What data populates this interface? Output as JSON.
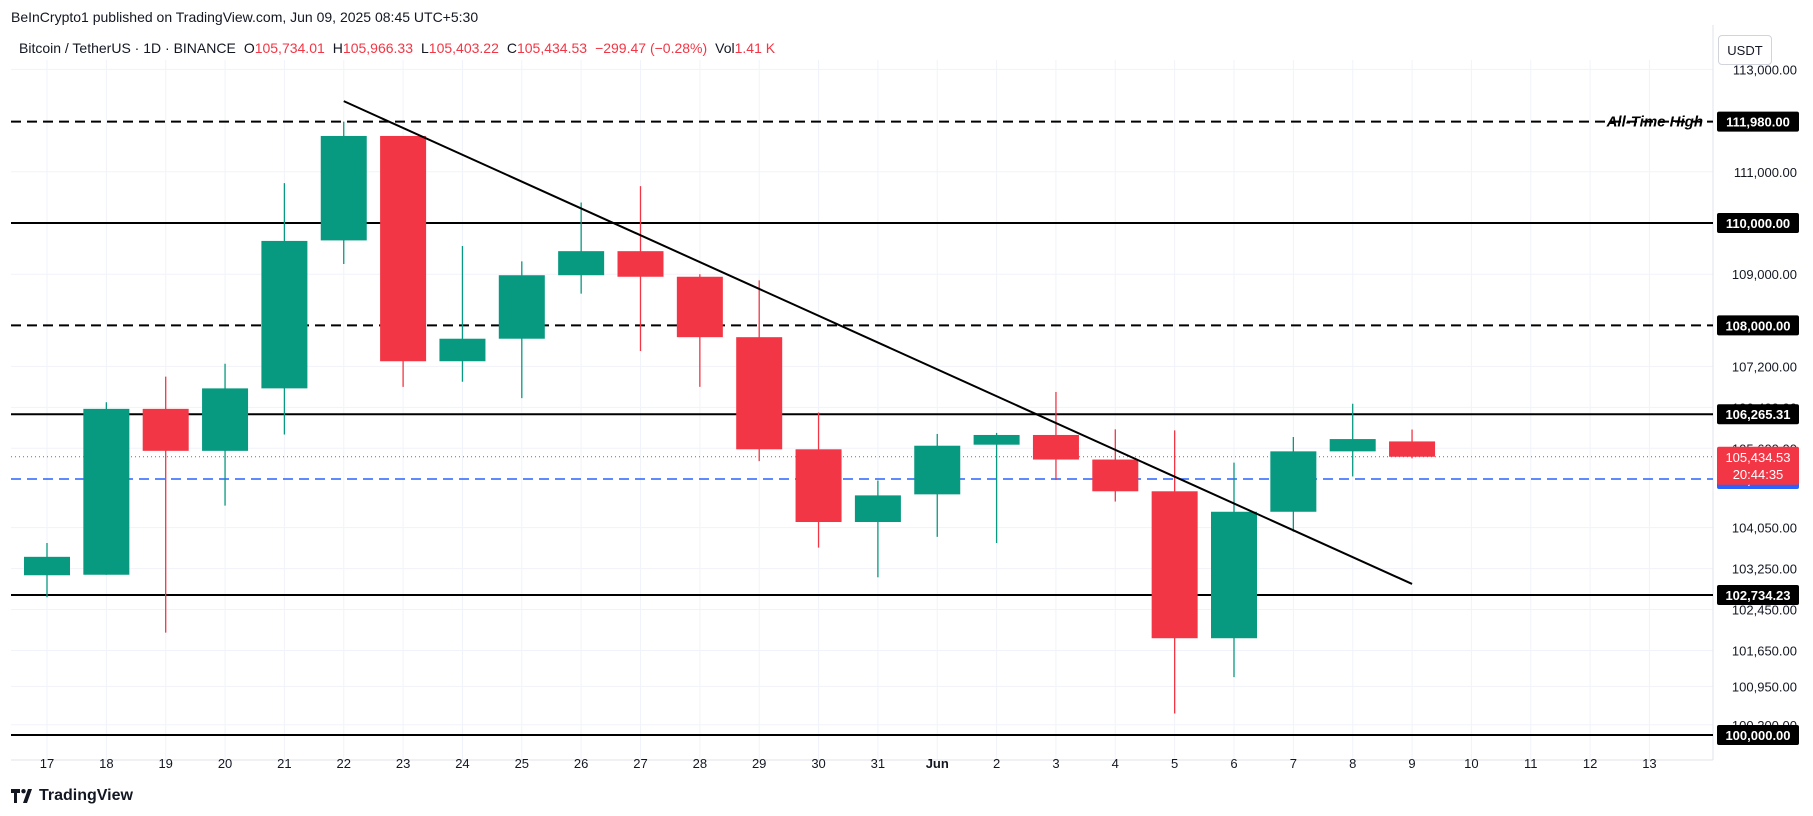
{
  "header": {
    "published": "BeInCrypto1 published on TradingView.com, Jun 09, 2025 08:45 UTC+5:30",
    "symbol": "Bitcoin / TetherUS · 1D · BINANCE",
    "o_label": "O",
    "o_value": "105,734.01",
    "h_label": "H",
    "h_value": "105,966.33",
    "l_label": "L",
    "l_value": "105,403.22",
    "c_label": "C",
    "c_value": "105,434.53",
    "change": "−299.47 (−0.28%)",
    "vol_label": "Vol",
    "vol_value": "1.41 K"
  },
  "currency": "USDT",
  "brand": "TradingView",
  "colors": {
    "up": "#089981",
    "down": "#f23645",
    "axis_text": "#131722",
    "grid": "#f0f3fa",
    "blue_line": "#2962ff",
    "black": "#000000"
  },
  "chart_data": {
    "type": "candlestick",
    "y_tick_labels": [
      {
        "value": 113000,
        "label": "113,000.00"
      },
      {
        "value": 111000,
        "label": "111,000.00"
      },
      {
        "value": 109000,
        "label": "109,000.00"
      },
      {
        "value": 107200,
        "label": "107,200.00"
      },
      {
        "value": 106400,
        "label": "106,400.00"
      },
      {
        "value": 105600,
        "label": "105,600.00"
      },
      {
        "value": 104050,
        "label": "104,050.00"
      },
      {
        "value": 103250,
        "label": "103,250.00"
      },
      {
        "value": 102450,
        "label": "102,450.00"
      },
      {
        "value": 101650,
        "label": "101,650.00"
      },
      {
        "value": 100950,
        "label": "100,950.00"
      },
      {
        "value": 100200,
        "label": "100,200.00"
      }
    ],
    "x_tick_labels": [
      "17",
      "18",
      "19",
      "20",
      "21",
      "22",
      "23",
      "24",
      "25",
      "26",
      "27",
      "28",
      "29",
      "30",
      "31",
      "Jun",
      "2",
      "3",
      "4",
      "5",
      "6",
      "7",
      "8",
      "9",
      "10",
      "11",
      "12",
      "13"
    ],
    "candles": [
      {
        "date": "17",
        "o": 103120,
        "h": 103750,
        "l": 102690,
        "c": 103480
      },
      {
        "date": "18",
        "o": 103130,
        "h": 106500,
        "l": 103130,
        "c": 106370
      },
      {
        "date": "19",
        "o": 106370,
        "h": 107000,
        "l": 102000,
        "c": 105550
      },
      {
        "date": "20",
        "o": 105550,
        "h": 107250,
        "l": 104480,
        "c": 106770
      },
      {
        "date": "21",
        "o": 106770,
        "h": 110780,
        "l": 105870,
        "c": 109650
      },
      {
        "date": "22",
        "o": 109660,
        "h": 111980,
        "l": 109200,
        "c": 111700
      },
      {
        "date": "23",
        "o": 111700,
        "h": 111700,
        "l": 106800,
        "c": 107300
      },
      {
        "date": "24",
        "o": 107300,
        "h": 109550,
        "l": 106900,
        "c": 107740
      },
      {
        "date": "25",
        "o": 107740,
        "h": 109250,
        "l": 106580,
        "c": 108980
      },
      {
        "date": "26",
        "o": 108980,
        "h": 110400,
        "l": 108620,
        "c": 109450
      },
      {
        "date": "27",
        "o": 109450,
        "h": 110720,
        "l": 107500,
        "c": 108950
      },
      {
        "date": "28",
        "o": 108950,
        "h": 109000,
        "l": 106800,
        "c": 107770
      },
      {
        "date": "29",
        "o": 107770,
        "h": 108880,
        "l": 105350,
        "c": 105580
      },
      {
        "date": "30",
        "o": 105580,
        "h": 106300,
        "l": 103660,
        "c": 104160
      },
      {
        "date": "31",
        "o": 104160,
        "h": 104970,
        "l": 103080,
        "c": 104680
      },
      {
        "date": "Jun",
        "o": 104700,
        "h": 105880,
        "l": 103870,
        "c": 105650
      },
      {
        "date": "2",
        "o": 105670,
        "h": 105900,
        "l": 103750,
        "c": 105860
      },
      {
        "date": "3",
        "o": 105860,
        "h": 106700,
        "l": 104980,
        "c": 105380
      },
      {
        "date": "4",
        "o": 105380,
        "h": 105970,
        "l": 104560,
        "c": 104760
      },
      {
        "date": "5",
        "o": 104760,
        "h": 105950,
        "l": 100420,
        "c": 101890
      },
      {
        "date": "6",
        "o": 101890,
        "h": 105320,
        "l": 101130,
        "c": 104360
      },
      {
        "date": "7",
        "o": 104360,
        "h": 105820,
        "l": 103970,
        "c": 105540
      },
      {
        "date": "8",
        "o": 105540,
        "h": 106470,
        "l": 105050,
        "c": 105780
      },
      {
        "date": "9",
        "o": 105734.01,
        "h": 105966.33,
        "l": 105403.22,
        "c": 105434.53
      }
    ],
    "horizontal_levels": [
      {
        "value": 111980,
        "label": "111,980.00",
        "style": "dashed",
        "color": "#000000",
        "text": "All-Time High"
      },
      {
        "value": 110000,
        "label": "110,000.00",
        "style": "solid",
        "color": "#000000"
      },
      {
        "value": 108000,
        "label": "108,000.00",
        "style": "dashed",
        "color": "#000000"
      },
      {
        "value": 106265.31,
        "label": "106,265.31",
        "style": "solid",
        "color": "#000000"
      },
      {
        "value": 105000,
        "label": "105,000.00",
        "style": "dashed",
        "color": "#2962ff"
      },
      {
        "value": 102734.23,
        "label": "102,734.23",
        "style": "solid",
        "color": "#000000"
      },
      {
        "value": 100000,
        "label": "100,000.00",
        "style": "solid",
        "color": "#000000"
      }
    ],
    "last_price": {
      "value": 105434.53,
      "label": "105,434.53",
      "countdown": "20:44:35"
    },
    "trendline": {
      "from": {
        "date": "22",
        "value": 112380
      },
      "to": {
        "date": "9",
        "value": 102950
      }
    }
  }
}
